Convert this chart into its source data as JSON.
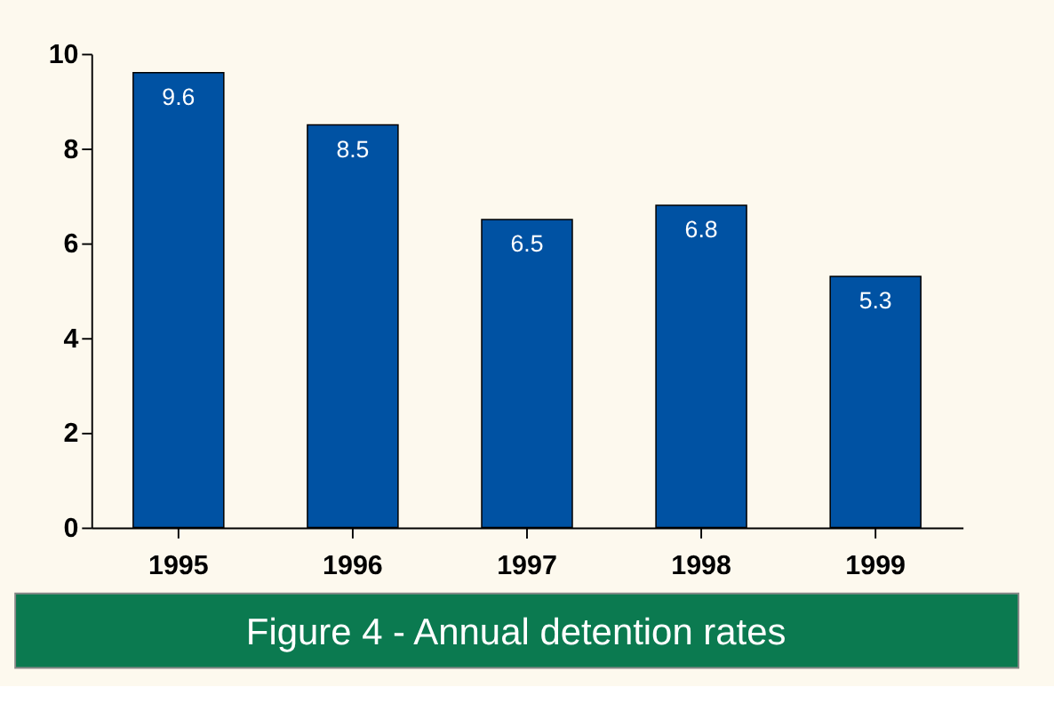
{
  "chart_data": {
    "type": "bar",
    "title": "Figure 4 - Annual detention rates",
    "categories": [
      "1995",
      "1996",
      "1997",
      "1998",
      "1999"
    ],
    "values": [
      9.6,
      8.5,
      6.5,
      6.8,
      5.3
    ],
    "color": "#0052a3",
    "ylim": [
      0,
      10
    ],
    "yticks": [
      0,
      2,
      4,
      6,
      8,
      10
    ],
    "grid": false,
    "data_labels": true
  }
}
